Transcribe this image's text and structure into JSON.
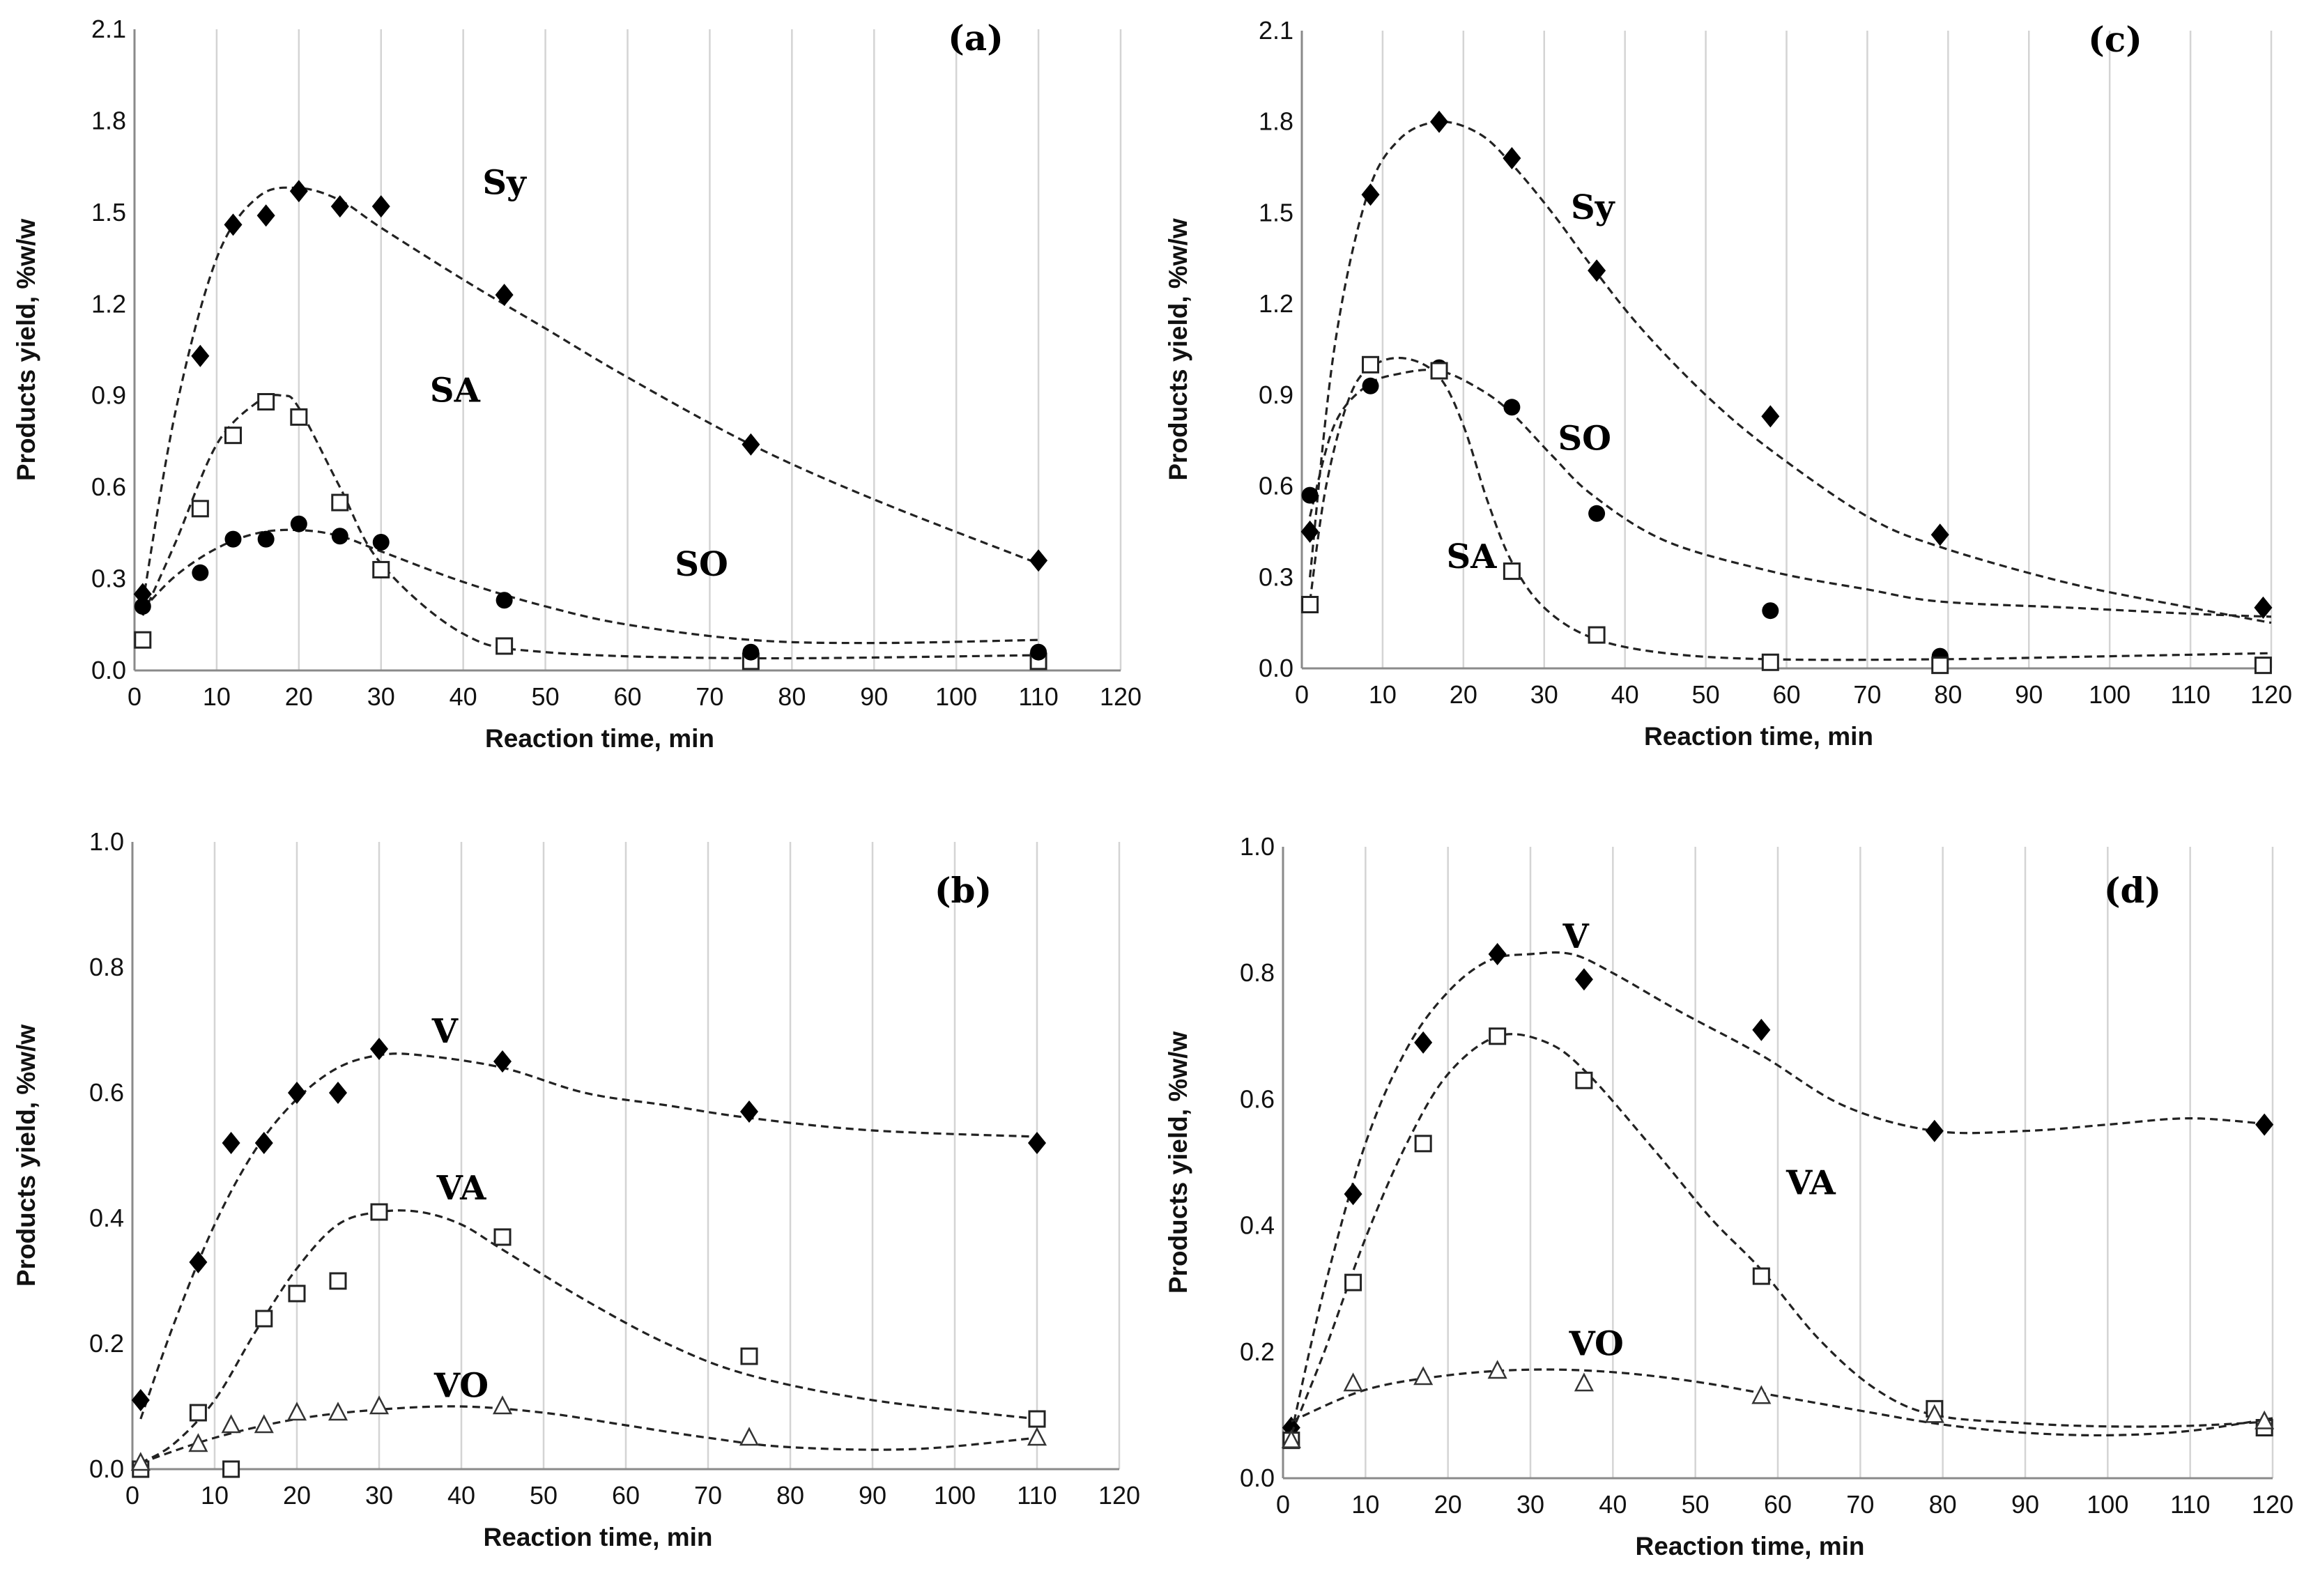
{
  "chart_data": [
    {
      "type": "scatter",
      "panel_label": "(a)",
      "xlabel": "Reaction time, min",
      "ylabel": "Products yield, %w/w",
      "xlim": [
        0,
        120
      ],
      "ylim": [
        0,
        2.1
      ],
      "xticks": [
        "0",
        "10",
        "20",
        "30",
        "40",
        "50",
        "60",
        "70",
        "80",
        "90",
        "100",
        "110",
        "120"
      ],
      "yticks": [
        "0.0",
        "0.3",
        "0.6",
        "0.9",
        "1.2",
        "1.5",
        "1.8",
        "2.1"
      ],
      "grid": "vertical",
      "series": [
        {
          "name": "Sy",
          "marker": "diamond-filled",
          "x": [
            1,
            8,
            12,
            16,
            20,
            25,
            30,
            45,
            75,
            110
          ],
          "y": [
            0.25,
            1.03,
            1.46,
            1.49,
            1.57,
            1.52,
            1.52,
            1.23,
            0.74,
            0.36
          ],
          "fit_x": [
            1,
            5,
            10,
            15,
            20,
            25,
            30,
            40,
            50,
            60,
            75,
            90,
            110
          ],
          "fit_y": [
            0.22,
            0.85,
            1.35,
            1.55,
            1.58,
            1.54,
            1.45,
            1.28,
            1.12,
            0.96,
            0.74,
            0.56,
            0.35
          ]
        },
        {
          "name": "SA",
          "marker": "square-open",
          "x": [
            1,
            8,
            12,
            16,
            20,
            25,
            30,
            45,
            75,
            110
          ],
          "y": [
            0.1,
            0.53,
            0.77,
            0.88,
            0.83,
            0.55,
            0.33,
            0.08,
            0.03,
            0.03
          ],
          "fit_x": [
            1,
            5,
            10,
            15,
            18,
            20,
            25,
            30,
            40,
            50,
            75,
            110
          ],
          "fit_y": [
            0.18,
            0.42,
            0.74,
            0.88,
            0.9,
            0.86,
            0.6,
            0.35,
            0.12,
            0.06,
            0.04,
            0.05
          ]
        },
        {
          "name": "SO",
          "marker": "circle-filled",
          "x": [
            1,
            8,
            12,
            16,
            20,
            25,
            30,
            45,
            75,
            110
          ],
          "y": [
            0.21,
            0.32,
            0.43,
            0.43,
            0.48,
            0.44,
            0.42,
            0.23,
            0.06,
            0.06
          ],
          "fit_x": [
            1,
            5,
            10,
            15,
            20,
            25,
            30,
            40,
            50,
            60,
            75,
            90,
            110
          ],
          "fit_y": [
            0.2,
            0.31,
            0.4,
            0.45,
            0.46,
            0.44,
            0.39,
            0.29,
            0.21,
            0.15,
            0.1,
            0.09,
            0.1
          ]
        }
      ]
    },
    {
      "type": "scatter",
      "panel_label": "(c)",
      "xlabel": "Reaction time, min",
      "ylabel": "Products yield, %w/w",
      "xlim": [
        0,
        120
      ],
      "ylim": [
        0,
        2.1
      ],
      "xticks": [
        "0",
        "10",
        "20",
        "30",
        "40",
        "50",
        "60",
        "70",
        "80",
        "90",
        "100",
        "110",
        "120"
      ],
      "yticks": [
        "0.0",
        "0.3",
        "0.6",
        "0.9",
        "1.2",
        "1.5",
        "1.8",
        "2.1"
      ],
      "grid": "vertical",
      "series": [
        {
          "name": "Sy",
          "marker": "diamond-filled",
          "x": [
            1,
            8.5,
            17,
            26,
            36.5,
            58,
            79,
            119
          ],
          "y": [
            0.45,
            1.56,
            1.8,
            1.68,
            1.31,
            0.83,
            0.44,
            0.2
          ],
          "fit_x": [
            1,
            4,
            8,
            12,
            17,
            22,
            26,
            31,
            36,
            42,
            50,
            58,
            70,
            79,
            95,
            110,
            120
          ],
          "fit_y": [
            0.3,
            1.05,
            1.55,
            1.74,
            1.8,
            1.76,
            1.66,
            1.5,
            1.32,
            1.12,
            0.9,
            0.72,
            0.5,
            0.4,
            0.28,
            0.2,
            0.15
          ]
        },
        {
          "name": "SO",
          "marker": "circle-filled",
          "x": [
            1,
            8.5,
            17,
            26,
            36.5,
            58,
            79
          ],
          "y": [
            0.57,
            0.93,
            0.99,
            0.86,
            0.51,
            0.19,
            0.04
          ],
          "fit_x": [
            1,
            4,
            8,
            12,
            17,
            22,
            26,
            31,
            36,
            45,
            58,
            70,
            79,
            95,
            110,
            120
          ],
          "fit_y": [
            0.5,
            0.8,
            0.93,
            0.97,
            0.98,
            0.92,
            0.84,
            0.7,
            0.57,
            0.42,
            0.32,
            0.26,
            0.22,
            0.2,
            0.18,
            0.17
          ]
        },
        {
          "name": "SA",
          "marker": "square-open",
          "x": [
            1,
            8.5,
            17,
            26,
            36.5,
            58,
            79,
            119
          ],
          "y": [
            0.21,
            1.0,
            0.98,
            0.32,
            0.11,
            0.02,
            0.01,
            0.01
          ],
          "fit_x": [
            1,
            3,
            6,
            9,
            13,
            17,
            20,
            23,
            26,
            30,
            36,
            45,
            58,
            79,
            100,
            120
          ],
          "fit_y": [
            0.22,
            0.6,
            0.9,
            1.0,
            1.02,
            0.96,
            0.8,
            0.55,
            0.35,
            0.2,
            0.1,
            0.05,
            0.03,
            0.03,
            0.04,
            0.05
          ]
        }
      ]
    },
    {
      "type": "scatter",
      "panel_label": "(b)",
      "xlabel": "Reaction time, min",
      "ylabel": "Products yield, %w/w",
      "xlim": [
        0,
        120
      ],
      "ylim": [
        0,
        1.0
      ],
      "xticks": [
        "0",
        "10",
        "20",
        "30",
        "40",
        "50",
        "60",
        "70",
        "80",
        "90",
        "100",
        "110",
        "120"
      ],
      "yticks": [
        "0.0",
        "0.2",
        "0.4",
        "0.6",
        "0.8",
        "1.0"
      ],
      "grid": "vertical",
      "series": [
        {
          "name": "V",
          "marker": "diamond-filled",
          "x": [
            1,
            8,
            12,
            16,
            20,
            25,
            30,
            45,
            75,
            110
          ],
          "y": [
            0.11,
            0.33,
            0.52,
            0.52,
            0.6,
            0.6,
            0.67,
            0.65,
            0.57,
            0.52
          ],
          "fit_x": [
            1,
            5,
            10,
            15,
            20,
            25,
            30,
            35,
            45,
            55,
            65,
            75,
            90,
            110
          ],
          "fit_y": [
            0.08,
            0.23,
            0.39,
            0.51,
            0.59,
            0.64,
            0.66,
            0.66,
            0.64,
            0.6,
            0.58,
            0.56,
            0.54,
            0.53
          ]
        },
        {
          "name": "VA",
          "marker": "square-open",
          "x": [
            1,
            8,
            12,
            16,
            20,
            25,
            30,
            45,
            75,
            110
          ],
          "y": [
            0.0,
            0.09,
            0.0,
            0.24,
            0.28,
            0.3,
            0.41,
            0.37,
            0.18,
            0.08
          ],
          "fit_x": [
            1,
            5,
            10,
            15,
            20,
            25,
            30,
            35,
            40,
            45,
            55,
            65,
            75,
            90,
            110
          ],
          "fit_y": [
            0.01,
            0.04,
            0.11,
            0.22,
            0.32,
            0.39,
            0.41,
            0.41,
            0.39,
            0.35,
            0.27,
            0.2,
            0.15,
            0.11,
            0.08
          ]
        },
        {
          "name": "VO",
          "marker": "triangle-open",
          "x": [
            1,
            8,
            12,
            16,
            20,
            25,
            30,
            45,
            75,
            110
          ],
          "y": [
            0.01,
            0.04,
            0.07,
            0.07,
            0.09,
            0.09,
            0.1,
            0.1,
            0.05,
            0.05
          ],
          "fit_x": [
            1,
            10,
            20,
            30,
            40,
            50,
            60,
            70,
            80,
            95,
            110
          ],
          "fit_y": [
            0.01,
            0.05,
            0.08,
            0.095,
            0.1,
            0.09,
            0.07,
            0.05,
            0.035,
            0.032,
            0.05
          ]
        }
      ]
    },
    {
      "type": "scatter",
      "panel_label": "(d)",
      "xlabel": "Reaction time, min",
      "ylabel": "Products yield, %w/w",
      "xlim": [
        0,
        120
      ],
      "ylim": [
        0,
        1.0
      ],
      "xticks": [
        "0",
        "10",
        "20",
        "30",
        "40",
        "50",
        "60",
        "70",
        "80",
        "90",
        "100",
        "110",
        "120"
      ],
      "yticks": [
        "0.0",
        "0.2",
        "0.4",
        "0.6",
        "0.8",
        "1.0"
      ],
      "grid": "vertical",
      "series": [
        {
          "name": "V",
          "marker": "diamond-filled",
          "x": [
            1,
            8.5,
            17,
            26,
            36.5,
            58,
            79,
            119
          ],
          "y": [
            0.08,
            0.45,
            0.69,
            0.83,
            0.79,
            0.71,
            0.55,
            0.56
          ],
          "fit_x": [
            1,
            5,
            10,
            15,
            20,
            25,
            30,
            35,
            40,
            48,
            58,
            68,
            79,
            90,
            100,
            110,
            120
          ],
          "fit_y": [
            0.07,
            0.3,
            0.53,
            0.68,
            0.77,
            0.82,
            0.83,
            0.83,
            0.8,
            0.74,
            0.67,
            0.59,
            0.55,
            0.55,
            0.56,
            0.57,
            0.56
          ]
        },
        {
          "name": "VA",
          "marker": "square-open",
          "x": [
            1,
            8.5,
            17,
            26,
            36.5,
            58,
            79,
            119
          ],
          "y": [
            0.06,
            0.31,
            0.53,
            0.7,
            0.63,
            0.32,
            0.11,
            0.08
          ],
          "fit_x": [
            1,
            5,
            10,
            15,
            20,
            26,
            32,
            37,
            45,
            52,
            58,
            65,
            72,
            79,
            90,
            100,
            110,
            120
          ],
          "fit_y": [
            0.07,
            0.2,
            0.38,
            0.53,
            0.64,
            0.7,
            0.69,
            0.64,
            0.52,
            0.41,
            0.33,
            0.22,
            0.14,
            0.1,
            0.087,
            0.082,
            0.083,
            0.09
          ]
        },
        {
          "name": "VO",
          "marker": "triangle-open",
          "x": [
            1,
            8.5,
            17,
            26,
            36.5,
            58,
            79,
            119
          ],
          "y": [
            0.06,
            0.15,
            0.16,
            0.17,
            0.15,
            0.13,
            0.1,
            0.09
          ],
          "fit_x": [
            1,
            10,
            20,
            30,
            40,
            50,
            60,
            70,
            80,
            90,
            100,
            110,
            120
          ],
          "fit_y": [
            0.09,
            0.14,
            0.163,
            0.172,
            0.168,
            0.153,
            0.13,
            0.107,
            0.085,
            0.072,
            0.068,
            0.075,
            0.095
          ]
        }
      ]
    }
  ]
}
